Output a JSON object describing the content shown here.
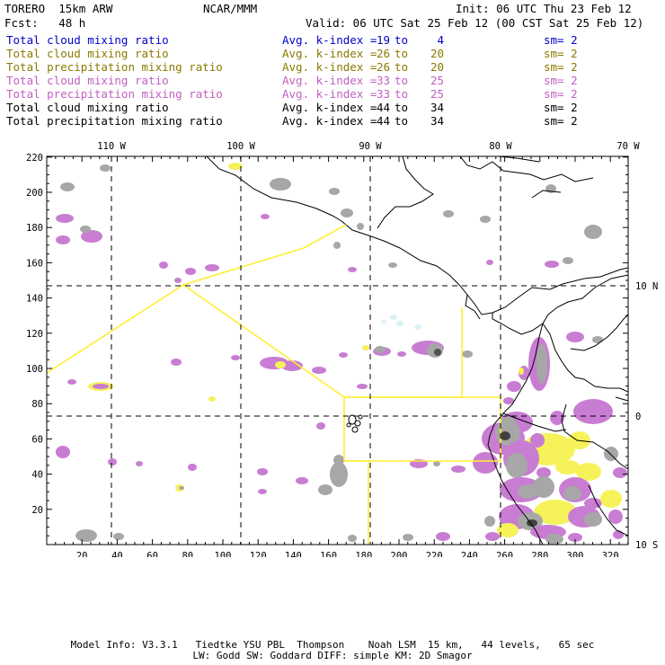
{
  "header": {
    "model": "TORERO  15km ARW",
    "org": "NCAR/MMM",
    "init": "Init: 06 UTC Thu 23 Feb 12",
    "fcst": "Fcst:   48 h",
    "valid": "Valid: 06 UTC Sat 25 Feb 12 (00 CST Sat 25 Feb 12)"
  },
  "legend": [
    {
      "field": "Total cloud mixing ratio",
      "avg": "Avg. k-index =",
      "k1": "19",
      "to": "to",
      "k2": "4",
      "sm": "sm= 2",
      "color": "#0000cc"
    },
    {
      "field": "Total cloud mixing ratio",
      "avg": "Avg. k-index =",
      "k1": "26",
      "to": "to",
      "k2": "20",
      "sm": "sm= 2",
      "color": "#8a7a00"
    },
    {
      "field": "Total precipitation mixing ratio",
      "avg": "Avg. k-index =",
      "k1": "26",
      "to": "to",
      "k2": "20",
      "sm": "sm= 2",
      "color": "#8a7a00"
    },
    {
      "field": "Total cloud mixing ratio",
      "avg": "Avg. k-index =",
      "k1": "33",
      "to": "to",
      "k2": "25",
      "sm": "sm= 2",
      "color": "#c060c0"
    },
    {
      "field": "Total precipitation mixing ratio",
      "avg": "Avg. k-index =",
      "k1": "33",
      "to": "to",
      "k2": "25",
      "sm": "sm= 2",
      "color": "#c060c0"
    },
    {
      "field": "Total cloud mixing ratio",
      "avg": "Avg. k-index =",
      "k1": "44",
      "to": "to",
      "k2": "34",
      "sm": "sm= 2",
      "color": "#000000"
    },
    {
      "field": "Total precipitation mixing ratio",
      "avg": "Avg. k-index =",
      "k1": "44",
      "to": "to",
      "k2": "34",
      "sm": "sm= 2",
      "color": "#000000"
    }
  ],
  "map": {
    "lon_labels": [
      "110 W",
      "100 W",
      "90 W",
      "80 W",
      "70 W"
    ],
    "lat_labels": [
      "10 N",
      "0",
      "10 S"
    ],
    "x_ticks": [
      "20",
      "40",
      "60",
      "80",
      "100",
      "120",
      "140",
      "160",
      "180",
      "200",
      "220",
      "240",
      "260",
      "280",
      "300",
      "320"
    ],
    "y_ticks": [
      "220",
      "200",
      "180",
      "160",
      "140",
      "120",
      "100",
      "80",
      "60",
      "40",
      "20"
    ],
    "colors": {
      "purple": "#c87dd2",
      "yellow": "#f6f25a",
      "gray": "#a7a7a7",
      "lightblue": "#d8f2f8",
      "box": "#ffee33"
    }
  },
  "footer": {
    "line1": "Model Info: V3.3.1   Tiedtke YSU PBL  Thompson    Noah LSM  15 km,   44 levels,   65 sec",
    "line2": "LW: Godd SW: Goddard DIFF: simple KM: 2D Smagor"
  }
}
